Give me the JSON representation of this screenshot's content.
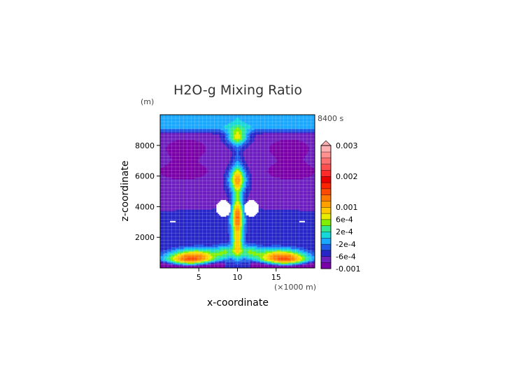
{
  "chart_data": {
    "type": "heatmap",
    "title": "H2O-g Mixing Ratio",
    "xlabel": "x-coordinate",
    "ylabel": "z-coordinate",
    "x_unit_label": "(×1000 m)",
    "y_unit_label": "(m)",
    "time_label": "8400 s",
    "xlim": [
      0,
      20
    ],
    "ylim": [
      0,
      10000
    ],
    "x_ticks": [
      {
        "value": 5,
        "label": "5"
      },
      {
        "value": 10,
        "label": "10"
      },
      {
        "value": 15,
        "label": "15"
      }
    ],
    "y_ticks": [
      {
        "value": 2000,
        "label": "2000"
      },
      {
        "value": 4000,
        "label": "4000"
      },
      {
        "value": 6000,
        "label": "6000"
      },
      {
        "value": 8000,
        "label": "8000"
      }
    ],
    "colorbar": {
      "levels": [
        -0.001,
        -0.0008,
        -0.0006,
        -0.0004,
        -0.0002,
        0,
        0.0002,
        0.0004,
        0.0006,
        0.0008,
        0.001,
        0.0012,
        0.0014,
        0.0016,
        0.0018,
        0.002,
        0.0022,
        0.0024,
        0.0026,
        0.0028,
        0.003
      ],
      "colors": [
        "#7a00a8",
        "#6e1fbf",
        "#2727c8",
        "#1e5ae6",
        "#1aa8ff",
        "#16d8d8",
        "#33e88c",
        "#80f000",
        "#e8ec00",
        "#ffc800",
        "#ffa000",
        "#ff7800",
        "#ff4a00",
        "#ff2400",
        "#e80000",
        "#ff2a2a",
        "#ff5050",
        "#ff7070",
        "#ff9090",
        "#ffb0b0"
      ],
      "tick_labels": [
        {
          "value": -0.001,
          "label": "-0.001"
        },
        {
          "value": -0.0006,
          "label": "-6e-4"
        },
        {
          "value": -0.0002,
          "label": "-2e-4"
        },
        {
          "value": 0.0002,
          "label": "2e-4"
        },
        {
          "value": 0.0006,
          "label": "6e-4"
        },
        {
          "value": 0.001,
          "label": "0.001"
        },
        {
          "value": 0.002,
          "label": "0.002"
        },
        {
          "value": 0.003,
          "label": "0.003"
        }
      ]
    }
  }
}
